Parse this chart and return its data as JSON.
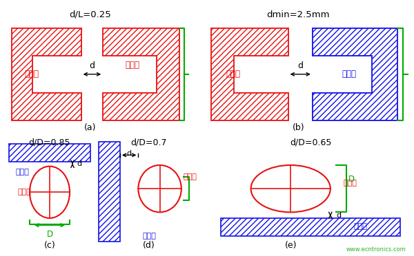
{
  "bg_color": "#ffffff",
  "title_a": "d/L=0.25",
  "title_b": "dmin=2.5mm",
  "title_c": "d/D=0.85",
  "title_d": "d/D=0.7",
  "title_e": "d/D=0.65",
  "label_a": "(a)",
  "label_b": "(b)",
  "label_c": "(c)",
  "label_d": "(d)",
  "label_e": "(e)",
  "hot_text": "热表面",
  "cold_text": "冷表面",
  "red": "#e81010",
  "blue": "#1010e8",
  "green": "#00aa00",
  "black": "#000000",
  "watermark": "www.ecntronics.com"
}
